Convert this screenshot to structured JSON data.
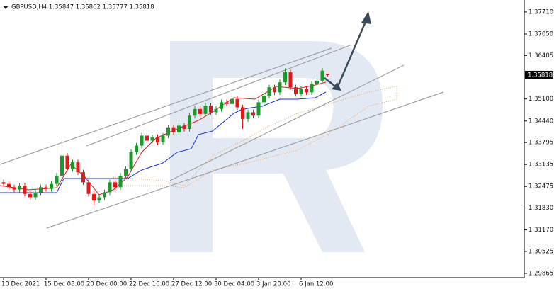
{
  "chart_data": {
    "type": "candlestick",
    "title": "GBPUSD,H4 1.35847 1.35862 1.35777 1.35818",
    "categories": [
      "10 Dec 2021",
      null,
      null,
      null,
      null,
      null,
      null,
      null,
      "15 Dec 08:00",
      null,
      null,
      null,
      null,
      null,
      null,
      null,
      "20 Dec 00:00",
      null,
      null,
      null,
      null,
      null,
      null,
      null,
      "22 Dec 16:00",
      null,
      null,
      null,
      null,
      null,
      null,
      null,
      "27 Dec 12:00",
      null,
      null,
      null,
      null,
      null,
      null,
      null,
      "30 Dec 04:00",
      null,
      null,
      null,
      null,
      null,
      null,
      null,
      "3 Jan 20:00",
      null,
      null,
      null,
      null,
      null,
      null,
      null,
      "6 Jan 12:00",
      null,
      null,
      null,
      null,
      null
    ],
    "open": [
      1.326,
      1.3255,
      1.3245,
      1.3238,
      1.325,
      1.3225,
      1.3215,
      1.323,
      1.3245,
      1.324,
      1.3255,
      1.328,
      1.334,
      1.33,
      1.332,
      1.329,
      1.326,
      1.3225,
      1.3205,
      1.3215,
      1.323,
      1.326,
      1.3245,
      1.328,
      1.33,
      1.335,
      1.337,
      1.34,
      1.3385,
      1.3395,
      1.338,
      1.34,
      1.3425,
      1.341,
      1.343,
      1.342,
      1.346,
      1.348,
      1.3465,
      1.349,
      1.347,
      1.348,
      1.35,
      1.3495,
      1.351,
      1.3485,
      1.345,
      1.347,
      1.346,
      1.35,
      1.352,
      1.3545,
      1.353,
      1.356,
      1.359,
      1.3545,
      1.3525,
      1.354,
      1.353,
      1.3555,
      1.3565,
      1.35847
    ],
    "high": [
      1.3268,
      1.3263,
      1.3253,
      1.3258,
      1.3258,
      1.3233,
      1.3238,
      1.3253,
      1.3253,
      1.3263,
      1.3288,
      1.3385,
      1.3348,
      1.3328,
      1.3328,
      1.3298,
      1.3268,
      1.3233,
      1.3223,
      1.3238,
      1.3268,
      1.3268,
      1.3288,
      1.3308,
      1.3358,
      1.3378,
      1.3408,
      1.3408,
      1.3403,
      1.3403,
      1.3408,
      1.3433,
      1.3433,
      1.3438,
      1.3438,
      1.3468,
      1.3488,
      1.3488,
      1.3498,
      1.3498,
      1.3488,
      1.3508,
      1.3508,
      1.3518,
      1.3518,
      1.3493,
      1.3478,
      1.3478,
      1.3508,
      1.3528,
      1.3553,
      1.3553,
      1.3568,
      1.3602,
      1.3598,
      1.3553,
      1.3548,
      1.3548,
      1.3563,
      1.3573,
      1.3603,
      1.35862
    ],
    "low": [
      1.3247,
      1.3237,
      1.323,
      1.323,
      1.3217,
      1.3207,
      1.3207,
      1.3222,
      1.3232,
      1.3232,
      1.3247,
      1.3272,
      1.3292,
      1.3292,
      1.3282,
      1.3252,
      1.3217,
      1.319,
      1.3197,
      1.3207,
      1.3222,
      1.3237,
      1.3237,
      1.3272,
      1.3292,
      1.3342,
      1.3362,
      1.3377,
      1.3377,
      1.3372,
      1.3372,
      1.3392,
      1.3402,
      1.3402,
      1.3412,
      1.3412,
      1.3452,
      1.3457,
      1.3457,
      1.3462,
      1.3462,
      1.3472,
      1.3487,
      1.3487,
      1.3477,
      1.342,
      1.3442,
      1.3452,
      1.3452,
      1.3492,
      1.3512,
      1.3522,
      1.3522,
      1.3552,
      1.3537,
      1.3517,
      1.3517,
      1.3522,
      1.3522,
      1.3547,
      1.3557,
      1.35777
    ],
    "close": [
      1.3255,
      1.3245,
      1.3238,
      1.325,
      1.3225,
      1.3215,
      1.323,
      1.3245,
      1.324,
      1.3255,
      1.328,
      1.334,
      1.33,
      1.332,
      1.329,
      1.326,
      1.3225,
      1.3205,
      1.3215,
      1.323,
      1.326,
      1.3245,
      1.328,
      1.33,
      1.335,
      1.337,
      1.34,
      1.3385,
      1.3395,
      1.338,
      1.34,
      1.3425,
      1.341,
      1.343,
      1.342,
      1.346,
      1.348,
      1.3465,
      1.349,
      1.347,
      1.348,
      1.35,
      1.3495,
      1.351,
      1.3485,
      1.345,
      1.347,
      1.346,
      1.35,
      1.352,
      1.3545,
      1.353,
      1.356,
      1.359,
      1.3545,
      1.3525,
      1.354,
      1.353,
      1.3555,
      1.3565,
      1.3595,
      1.35818
    ],
    "up_color": "#1a9a2a",
    "down_color": "#e01a1a",
    "ylim": [
      1.29737,
      1.3807
    ],
    "yticks": [
      {
        "value": 1.3771,
        "label": "1.37710"
      },
      {
        "value": 1.3705,
        "label": "1.37050"
      },
      {
        "value": 1.36405,
        "label": "1.36405"
      },
      {
        "value": 1.351,
        "label": "1.35100"
      },
      {
        "value": 1.3444,
        "label": "1.34440"
      },
      {
        "value": 1.33795,
        "label": "1.33795"
      },
      {
        "value": 1.33135,
        "label": "1.33135"
      },
      {
        "value": 1.32475,
        "label": "1.32475"
      },
      {
        "value": 1.3183,
        "label": "1.31830"
      },
      {
        "value": 1.3117,
        "label": "1.31170"
      },
      {
        "value": 1.30525,
        "label": "1.30525"
      },
      {
        "value": 1.29865,
        "label": "1.29865"
      }
    ],
    "price_label": {
      "value": 1.35818,
      "label": "1.35818"
    }
  }
}
